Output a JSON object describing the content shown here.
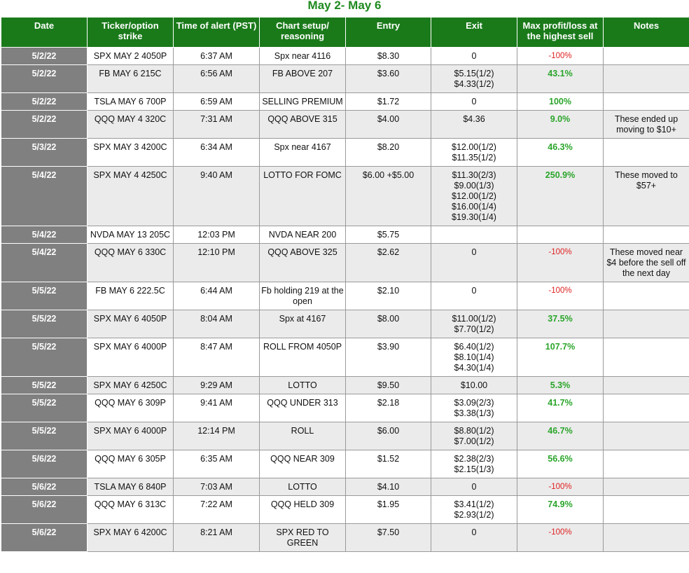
{
  "title": "May 2- May 6",
  "columns": [
    "Date",
    "Ticker/option strike",
    "Time of alert (PST)",
    "Chart setup/ reasoning",
    "Entry",
    "Exit",
    "Max profit/loss at the highest sell",
    "Notes"
  ],
  "rows": [
    {
      "date": "5/2/22",
      "ticker": "SPX MAY 2 4050P",
      "time": "6:37 AM",
      "setup": "Spx near 4116",
      "entry": "$8.30",
      "exit": [
        "0"
      ],
      "result": "-100%",
      "result_type": "neg",
      "notes": ""
    },
    {
      "date": "5/2/22",
      "ticker": "FB MAY 6 215C",
      "time": "6:56 AM",
      "setup": "FB ABOVE 207",
      "entry": "$3.60",
      "exit": [
        "$5.15(1/2)",
        "$4.33(1/2)"
      ],
      "result": "43.1%",
      "result_type": "pos",
      "notes": ""
    },
    {
      "date": "5/2/22",
      "ticker": "TSLA MAY 6 700P",
      "time": "6:59 AM",
      "setup": "SELLING PREMIUM",
      "entry": "$1.72",
      "exit": [
        "0"
      ],
      "result": "100%",
      "result_type": "pos",
      "notes": ""
    },
    {
      "date": "5/2/22",
      "ticker": "QQQ MAY 4 320C",
      "time": "7:31 AM",
      "setup": "QQQ ABOVE 315",
      "entry": "$4.00",
      "exit": [
        "$4.36"
      ],
      "result": "9.0%",
      "result_type": "pos",
      "notes": "These ended up moving to $10+"
    },
    {
      "date": "5/3/22",
      "ticker": "SPX MAY 3 4200C",
      "time": "6:34 AM",
      "setup": "Spx near 4167",
      "entry": "$8.20",
      "exit": [
        "$12.00(1/2)",
        "$11.35(1/2)"
      ],
      "result": "46.3%",
      "result_type": "pos",
      "notes": ""
    },
    {
      "date": "5/4/22",
      "ticker": "SPX MAY 4 4250C",
      "time": "9:40 AM",
      "setup": "LOTTO FOR FOMC",
      "entry": "$6.00 +$5.00",
      "exit": [
        "$11.30(2/3)",
        "$9.00(1/3)",
        "$12.00(1/2)",
        "$16.00(1/4)",
        "$19.30(1/4)"
      ],
      "result": "250.9%",
      "result_type": "pos",
      "notes": "These moved to $57+"
    },
    {
      "date": "5/4/22",
      "ticker": "NVDA MAY 13 205C",
      "time": "12:03 PM",
      "setup": "NVDA NEAR 200",
      "entry": "$5.75",
      "exit": [
        ""
      ],
      "result": "",
      "result_type": "pos",
      "notes": ""
    },
    {
      "date": "5/4/22",
      "ticker": "QQQ MAY 6 330C",
      "time": "12:10 PM",
      "setup": "QQQ ABOVE 325",
      "entry": "$2.62",
      "exit": [
        "0"
      ],
      "result": "-100%",
      "result_type": "neg",
      "notes": "These moved near $4 before the sell off the next day"
    },
    {
      "date": "5/5/22",
      "ticker": "FB MAY 6 222.5C",
      "time": "6:44 AM",
      "setup": "Fb holding 219 at the open",
      "entry": "$2.10",
      "exit": [
        "0"
      ],
      "result": "-100%",
      "result_type": "neg",
      "notes": ""
    },
    {
      "date": "5/5/22",
      "ticker": "SPX MAY 6 4050P",
      "time": "8:04 AM",
      "setup": "Spx at 4167",
      "entry": "$8.00",
      "exit": [
        "$11.00(1/2)",
        "$7.70(1/2)"
      ],
      "result": "37.5%",
      "result_type": "pos",
      "notes": ""
    },
    {
      "date": "5/5/22",
      "ticker": "SPX MAY 6 4000P",
      "time": "8:47 AM",
      "setup": "ROLL FROM 4050P",
      "entry": "$3.90",
      "exit": [
        "$6.40(1/2)",
        "$8.10(1/4)",
        "$4.30(1/4)"
      ],
      "result": "107.7%",
      "result_type": "pos",
      "notes": ""
    },
    {
      "date": "5/5/22",
      "ticker": "SPX MAY 6 4250C",
      "time": "9:29 AM",
      "setup": "LOTTO",
      "entry": "$9.50",
      "exit": [
        "$10.00"
      ],
      "result": "5.3%",
      "result_type": "pos",
      "notes": ""
    },
    {
      "date": "5/5/22",
      "ticker": "QQQ MAY 6 309P",
      "time": "9:41 AM",
      "setup": "QQQ UNDER 313",
      "entry": "$2.18",
      "exit": [
        "$3.09(2/3)",
        "$3.38(1/3)"
      ],
      "result": "41.7%",
      "result_type": "pos",
      "notes": ""
    },
    {
      "date": "5/5/22",
      "ticker": "SPX MAY 6 4000P",
      "time": "12:14 PM",
      "setup": "ROLL",
      "entry": "$6.00",
      "exit": [
        "$8.80(1/2)",
        "$7.00(1/2)"
      ],
      "result": "46.7%",
      "result_type": "pos",
      "notes": ""
    },
    {
      "date": "5/6/22",
      "ticker": "QQQ MAY 6 305P",
      "time": "6:35 AM",
      "setup": "QQQ NEAR 309",
      "entry": "$1.52",
      "exit": [
        "$2.38(2/3)",
        "$2.15(1/3)"
      ],
      "result": "56.6%",
      "result_type": "pos",
      "notes": ""
    },
    {
      "date": "5/6/22",
      "ticker": "TSLA MAY 6 840P",
      "time": "7:03 AM",
      "setup": "LOTTO",
      "entry": "$4.10",
      "exit": [
        "0"
      ],
      "result": "-100%",
      "result_type": "neg",
      "notes": ""
    },
    {
      "date": "5/6/22",
      "ticker": "QQQ MAY 6 313C",
      "time": "7:22 AM",
      "setup": "QQQ HELD 309",
      "entry": "$1.95",
      "exit": [
        "$3.41(1/2)",
        "$2.93(1/2)"
      ],
      "result": "74.9%",
      "result_type": "pos",
      "notes": ""
    },
    {
      "date": "5/6/22",
      "ticker": "SPX MAY 6 4200C",
      "time": "8:21 AM",
      "setup": "SPX RED TO GREEN",
      "entry": "$7.50",
      "exit": [
        "0"
      ],
      "result": "-100%",
      "result_type": "neg",
      "notes": ""
    }
  ],
  "colors": {
    "header_bg": "#1a7a1a",
    "title": "#1f8a1f",
    "date_bg": "#808080",
    "positive": "#2aa52a",
    "negative": "#e02020",
    "alt_row": "#ebebeb"
  }
}
